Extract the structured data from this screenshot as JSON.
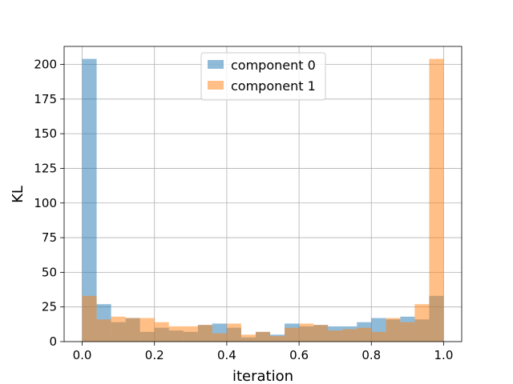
{
  "chart_data": {
    "type": "bar",
    "title": "",
    "xlabel": "iteration",
    "ylabel": "KL",
    "xlim": [
      -0.05,
      1.05
    ],
    "ylim": [
      0,
      213
    ],
    "xticks": [
      0.0,
      0.2,
      0.4,
      0.6,
      0.8,
      1.0
    ],
    "xtick_labels": [
      "0.0",
      "0.2",
      "0.4",
      "0.6",
      "0.8",
      "1.0"
    ],
    "yticks": [
      0,
      25,
      50,
      75,
      100,
      125,
      150,
      175,
      200
    ],
    "ytick_labels": [
      "0",
      "25",
      "50",
      "75",
      "100",
      "125",
      "150",
      "175",
      "200"
    ],
    "grid": true,
    "legend": "top-center",
    "bin_edges": [
      0.0,
      0.04,
      0.08,
      0.12,
      0.16,
      0.2,
      0.24,
      0.28,
      0.32,
      0.36,
      0.4,
      0.44,
      0.48,
      0.52,
      0.56,
      0.6,
      0.64,
      0.68,
      0.72,
      0.76,
      0.8,
      0.84,
      0.88,
      0.92,
      0.96,
      1.0
    ],
    "series": [
      {
        "name": "component 0",
        "color": "#1f77b4",
        "values": [
          204,
          27,
          14,
          17,
          7,
          10,
          8,
          7,
          12,
          13,
          10,
          3,
          7,
          5,
          13,
          11,
          12,
          11,
          11,
          14,
          17,
          16,
          18,
          16,
          33
        ]
      },
      {
        "name": "component 1",
        "color": "#ff7f0e",
        "values": [
          33,
          16,
          18,
          17,
          17,
          14,
          11,
          11,
          12,
          6,
          13,
          5,
          7,
          4,
          10,
          13,
          12,
          8,
          9,
          10,
          7,
          17,
          14,
          27,
          204
        ]
      }
    ]
  }
}
